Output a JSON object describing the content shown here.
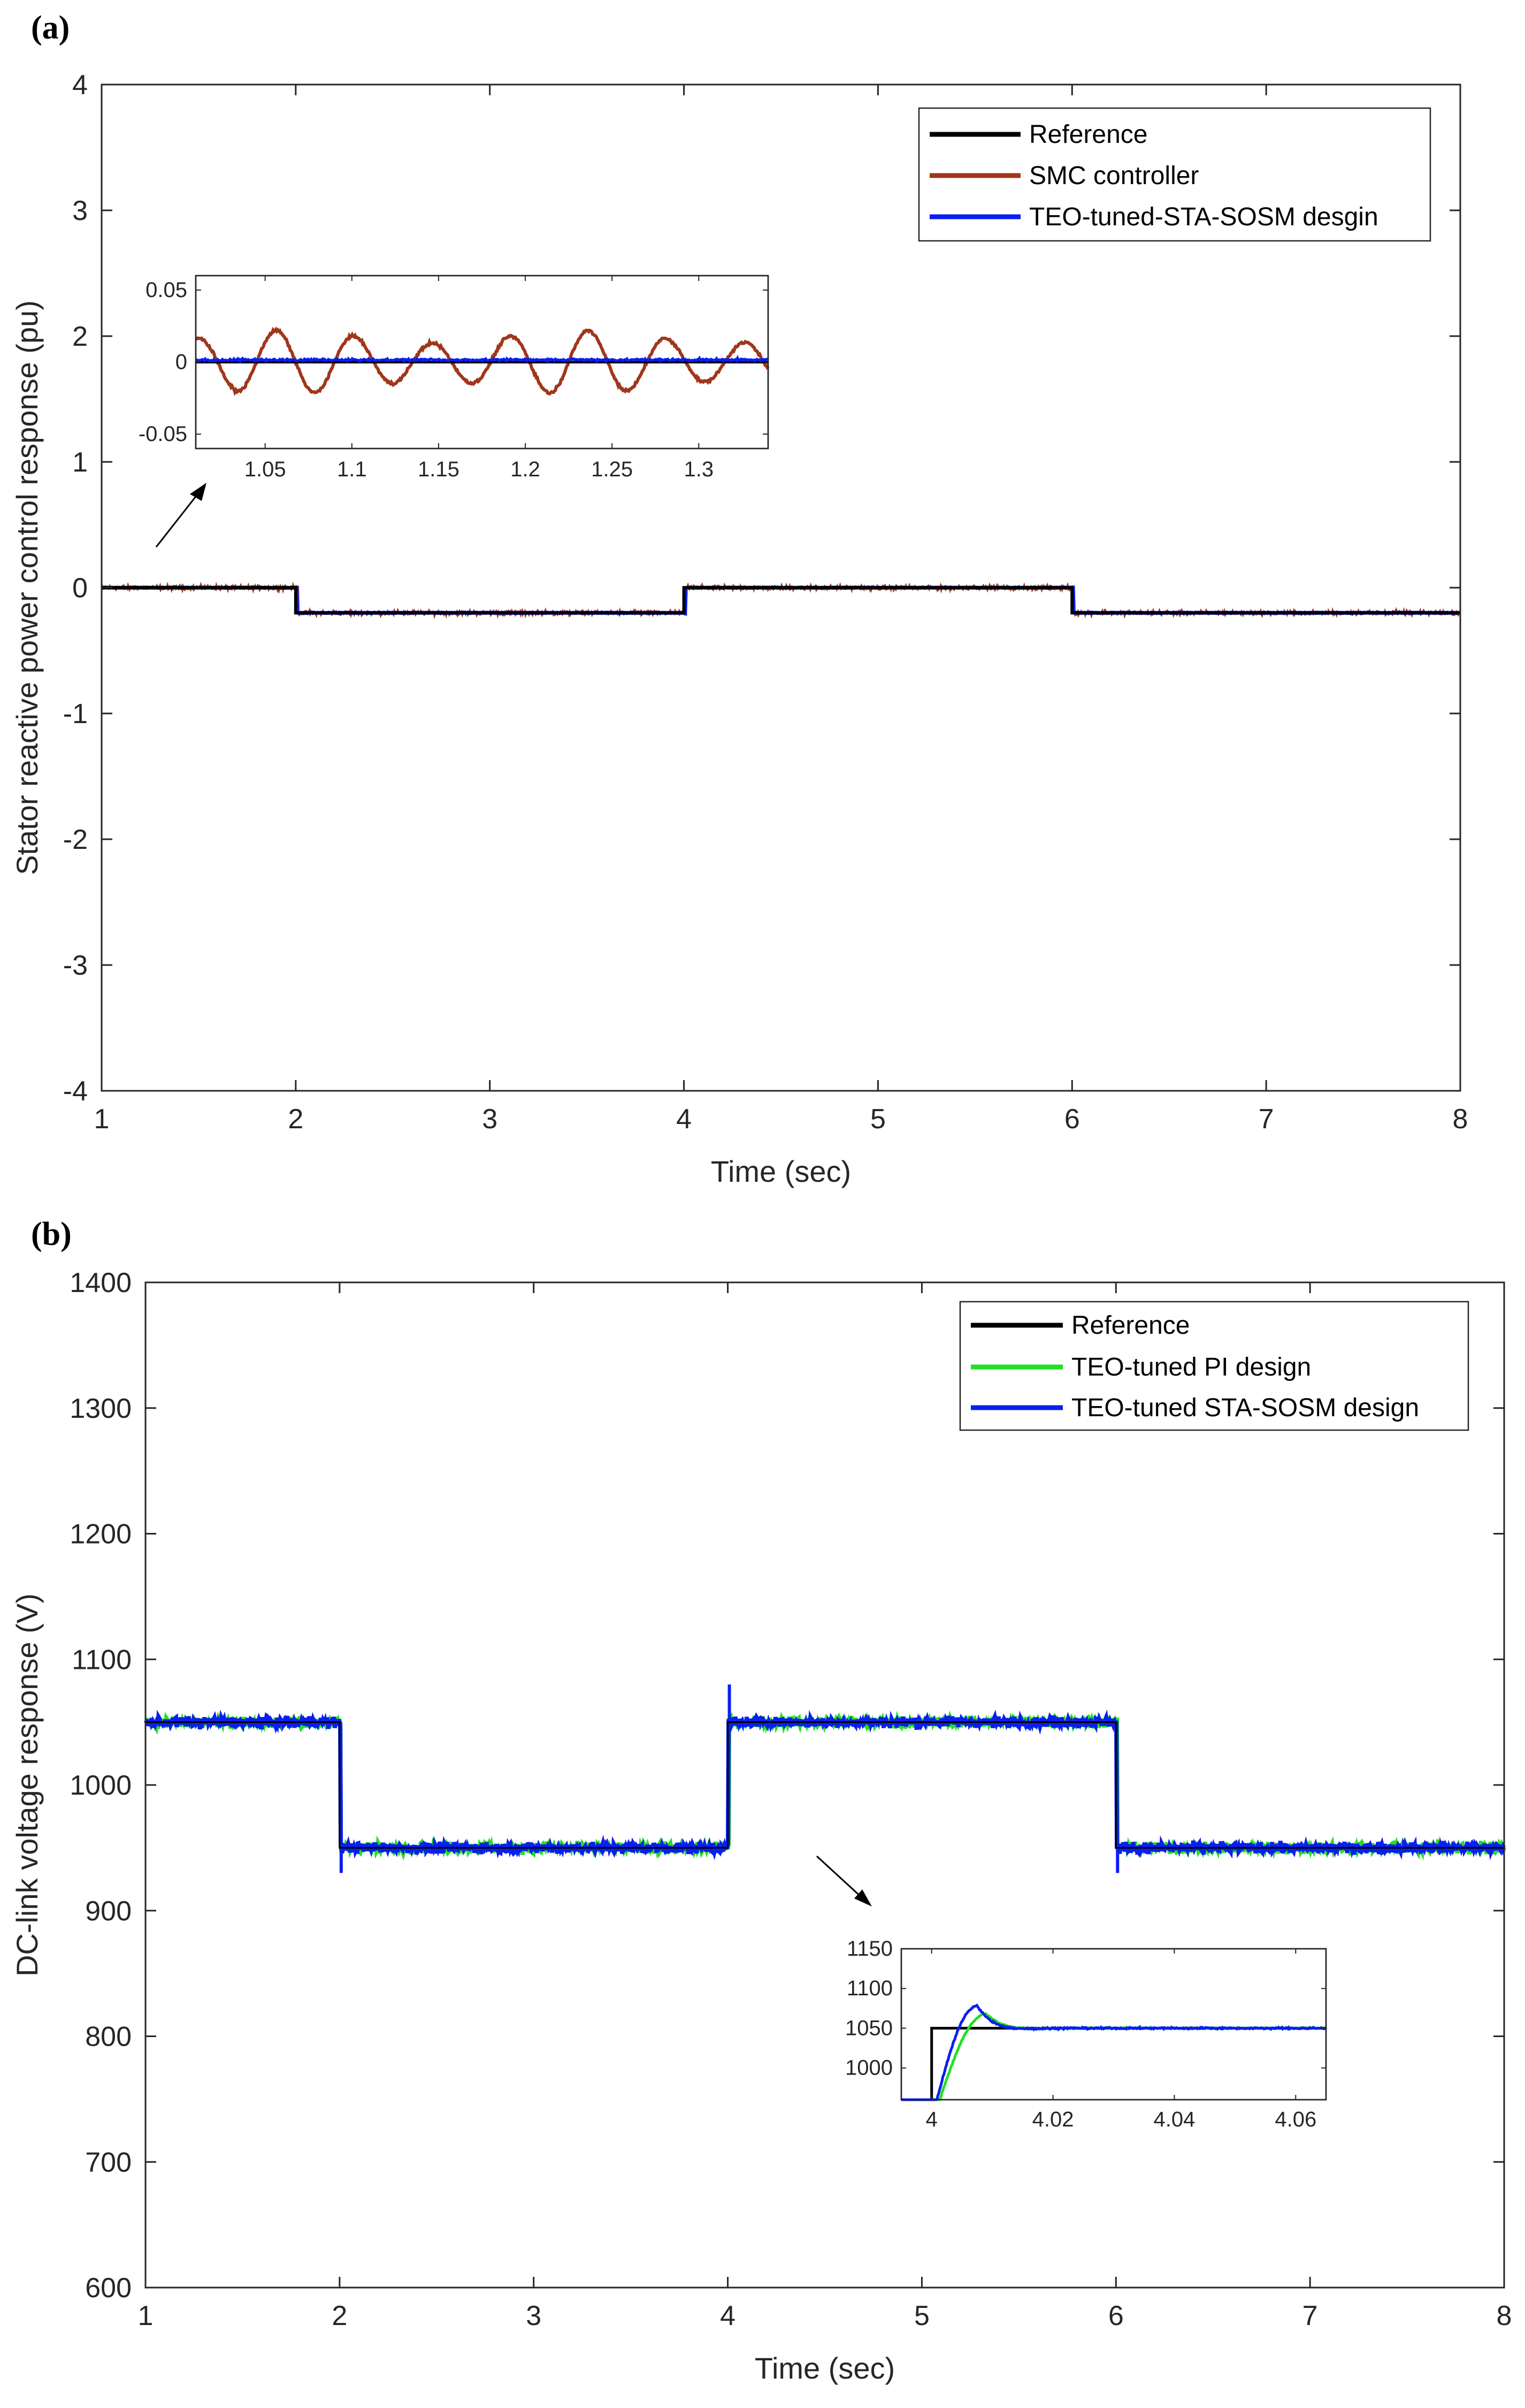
{
  "chart_data": [
    {
      "type": "line",
      "panel": "(a)",
      "xlabel": "Time (sec)",
      "ylabel": "Stator reactive power control response (pu)",
      "xlim": [
        1,
        8
      ],
      "ylim": [
        -4,
        4
      ],
      "xticks": [
        "1",
        "2",
        "3",
        "4",
        "5",
        "6",
        "7",
        "8"
      ],
      "yticks": [
        "-4",
        "-3",
        "-2",
        "-1",
        "0",
        "1",
        "2",
        "3",
        "4"
      ],
      "legend_position": "top-right",
      "series": [
        {
          "name": "Reference",
          "color": "#000000",
          "steps": [
            {
              "x": 1,
              "y": 0
            },
            {
              "x": 2,
              "y": -0.2
            },
            {
              "x": 4,
              "y": 0
            },
            {
              "x": 6,
              "y": -0.2
            },
            {
              "x": 8,
              "y": -0.2
            }
          ]
        },
        {
          "name": "SMC controller",
          "color": "#A0361B",
          "follows": "Reference",
          "ripple_amplitude": 0.022
        },
        {
          "name": "TEO-tuned-STA-SOSM desgin",
          "color": "#0A1EF0",
          "follows": "Reference",
          "ripple_amplitude": 0.003
        }
      ],
      "inset": {
        "xlim": [
          1.01,
          1.34
        ],
        "ylim": [
          -0.06,
          0.06
        ],
        "xticks": [
          "1.05",
          "1.1",
          "1.15",
          "1.2",
          "1.25",
          "1.3"
        ],
        "yticks": [
          "-0.05",
          "0",
          "0.05"
        ],
        "reference_value": 0,
        "smc_oscillation_amplitude": 0.022,
        "smc_oscillation_period": 0.045
      }
    },
    {
      "type": "line",
      "panel": "(b)",
      "xlabel": "Time (sec)",
      "ylabel": "DC-link voltage response (V)",
      "xlim": [
        1,
        8
      ],
      "ylim": [
        600,
        1400
      ],
      "xticks": [
        "1",
        "2",
        "3",
        "4",
        "5",
        "6",
        "7",
        "8"
      ],
      "yticks": [
        "600",
        "700",
        "800",
        "900",
        "1000",
        "1100",
        "1200",
        "1300",
        "1400"
      ],
      "legend_position": "top-right",
      "series": [
        {
          "name": "Reference",
          "color": "#000000",
          "steps": [
            {
              "x": 1,
              "y": 1050
            },
            {
              "x": 2,
              "y": 950
            },
            {
              "x": 4,
              "y": 1050
            },
            {
              "x": 6,
              "y": 950
            },
            {
              "x": 8,
              "y": 950
            }
          ]
        },
        {
          "name": "TEO-tuned PI design",
          "color": "#22E022",
          "follows": "Reference",
          "ripple_amplitude": 6
        },
        {
          "name": "TEO-tuned STA-SOSM design",
          "color": "#0A1EF0",
          "follows": "Reference",
          "ripple_amplitude": 6,
          "transients": [
            {
              "x": 2,
              "y": 930
            },
            {
              "x": 4,
              "y": 1080
            },
            {
              "x": 6,
              "y": 930
            }
          ]
        }
      ],
      "inset": {
        "xlim": [
          3.995,
          4.065
        ],
        "ylim": [
          960,
          1150
        ],
        "xticks": [
          "4",
          "4.02",
          "4.04",
          "4.06"
        ],
        "yticks": [
          "1000",
          "1050",
          "1100",
          "1150"
        ],
        "reference_step_time": 4.0,
        "sosm_peak": {
          "x": 4.0075,
          "y": 1078
        },
        "pi_peak": {
          "x": 4.009,
          "y": 1068
        },
        "settled_value": 1050
      }
    }
  ]
}
